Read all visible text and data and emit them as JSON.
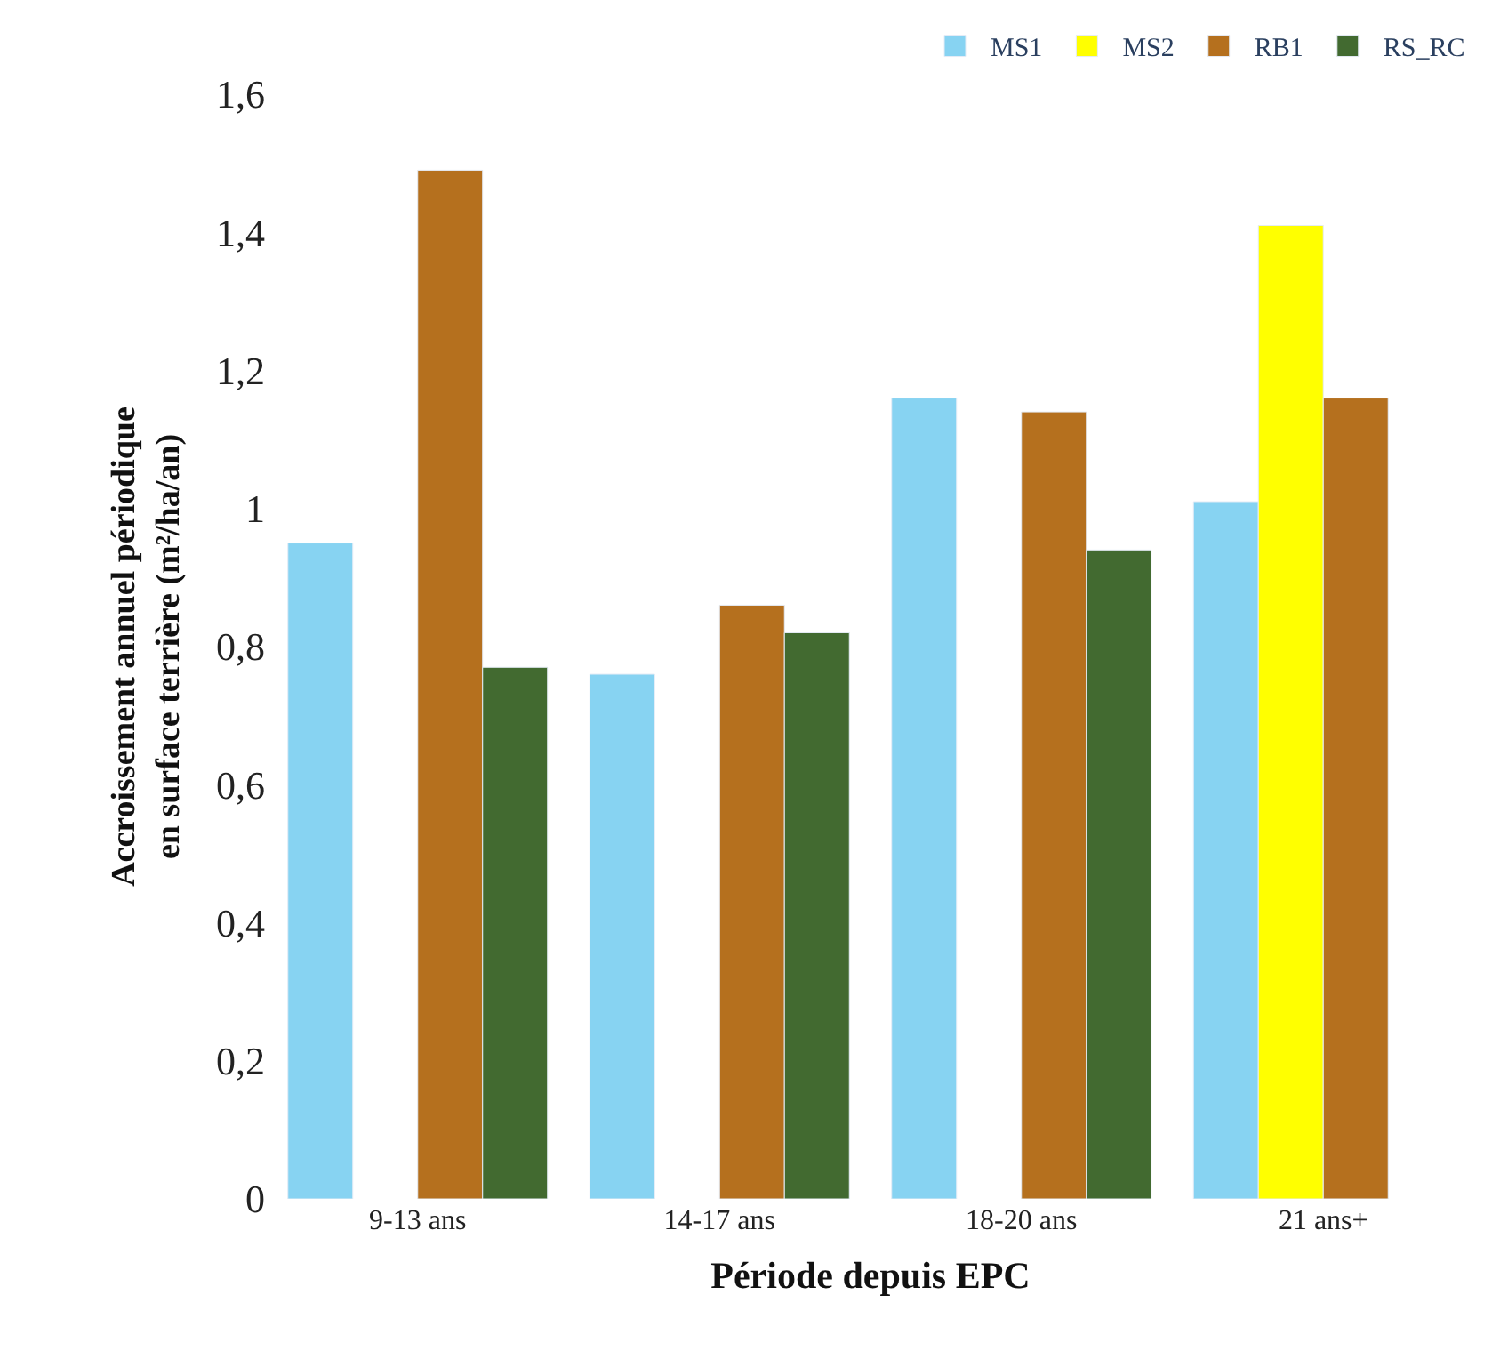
{
  "chart_data": {
    "type": "bar",
    "xlabel": "Période depuis EPC",
    "ylabel": "Accroissement annuel périodique\nen surface terrière (m²/ha/an)",
    "categories": [
      "9-13 ans",
      "14-17 ans",
      "18-20 ans",
      "21 ans+"
    ],
    "series": [
      {
        "name": "MS1",
        "color": "#87d3f2",
        "values": [
          0.95,
          0.76,
          1.16,
          1.01
        ]
      },
      {
        "name": "MS2",
        "color": "#ffff00",
        "values": [
          null,
          null,
          null,
          1.41
        ]
      },
      {
        "name": "RB1",
        "color": "#b5701e",
        "values": [
          1.49,
          0.86,
          1.14,
          1.16
        ]
      },
      {
        "name": "RS_RC",
        "color": "#426a30",
        "values": [
          0.77,
          0.82,
          0.94,
          null
        ]
      }
    ],
    "ylim": [
      0,
      1.6
    ],
    "yticks": [
      0,
      {
        "value": 0.2,
        "label": "0,2"
      },
      {
        "value": 0.4,
        "label": "0,4"
      },
      {
        "value": 0.6,
        "label": "0,6"
      },
      {
        "value": 0.8,
        "label": "0,8"
      },
      1,
      {
        "value": 1.2,
        "label": "1,2"
      },
      {
        "value": 1.4,
        "label": "1,4"
      },
      {
        "value": 1.6,
        "label": "1,6"
      }
    ],
    "legend": "top right"
  }
}
